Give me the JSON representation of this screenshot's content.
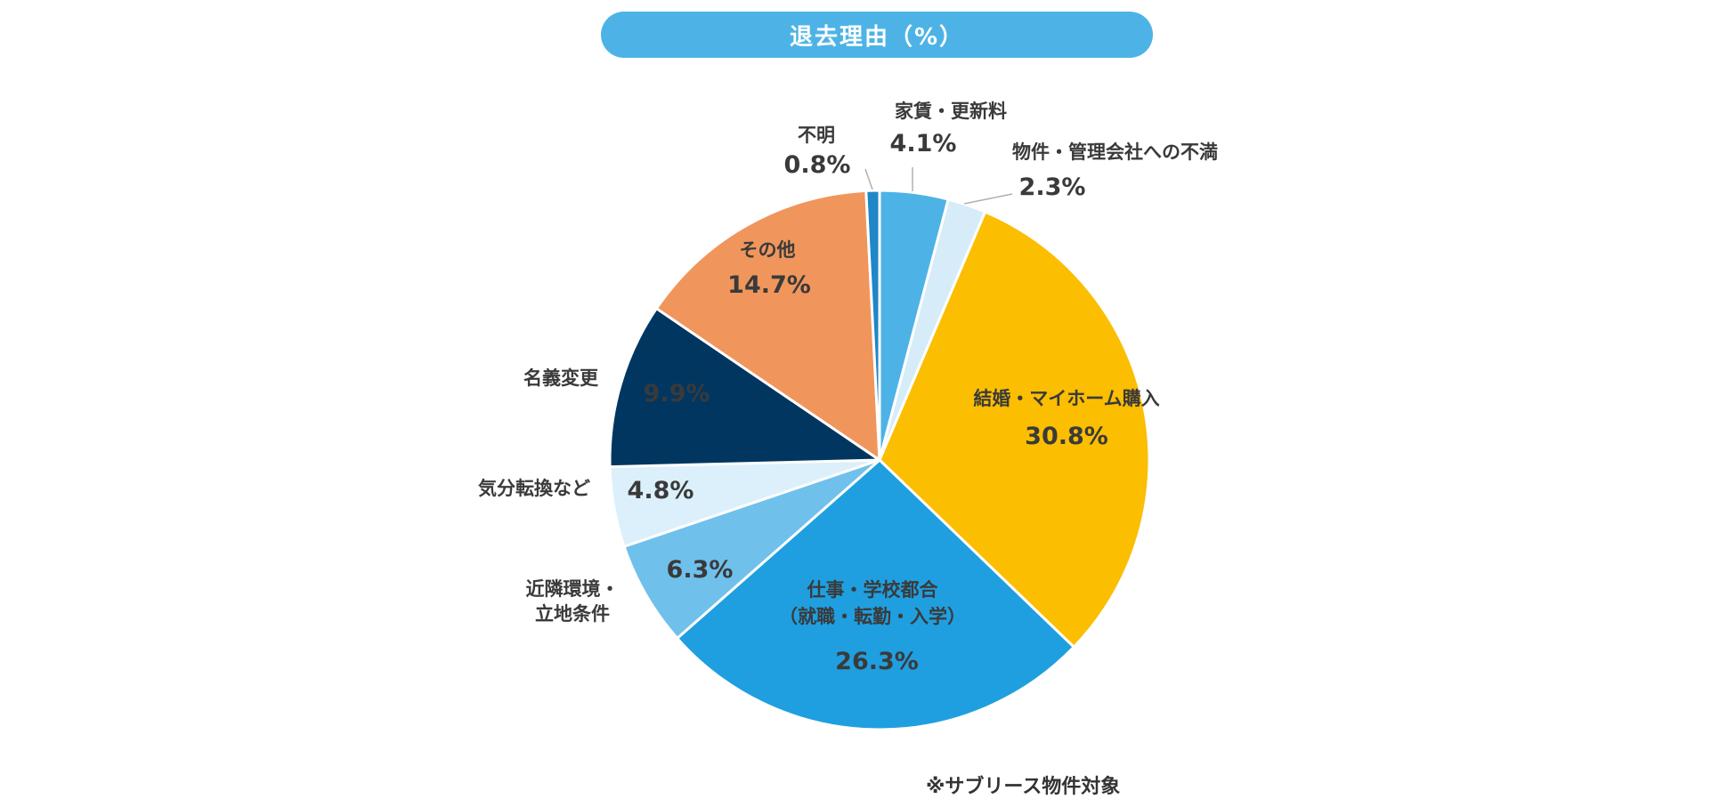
{
  "title": "退去理由（%）",
  "footnote": "※サブリース物件対象",
  "chart_data": {
    "type": "pie",
    "title": "退去理由（%）",
    "start_angle_deg": 0,
    "direction": "clockwise",
    "slices": [
      {
        "label": [
          "家賃・更新料"
        ],
        "value": 4.1,
        "value_text": "4.1%",
        "color": "#4db3e6"
      },
      {
        "label": [
          "物件・管理会社への不満"
        ],
        "value": 2.3,
        "value_text": "2.3%",
        "color": "#d6ecf9"
      },
      {
        "label": [
          "結婚・マイホーム購入"
        ],
        "value": 30.8,
        "value_text": "30.8%",
        "color": "#fbbe00"
      },
      {
        "label": [
          "仕事・学校都合",
          "（就職・転勤・入学）"
        ],
        "value": 26.3,
        "value_text": "26.3%",
        "color": "#1f9fe0"
      },
      {
        "label": [
          "近隣環境・",
          "立地条件"
        ],
        "value": 6.3,
        "value_text": "6.3%",
        "color": "#70c0ec"
      },
      {
        "label": [
          "気分転換など"
        ],
        "value": 4.8,
        "value_text": "4.8%",
        "color": "#dcf0fb"
      },
      {
        "label": [
          "名義変更"
        ],
        "value": 9.9,
        "value_text": "9.9%",
        "color": "#003660"
      },
      {
        "label": [
          "その他"
        ],
        "value": 14.7,
        "value_text": "14.7%",
        "color": "#f0965c"
      },
      {
        "label": [
          "不明"
        ],
        "value": 0.8,
        "value_text": "0.8%",
        "color": "#1f86c8"
      }
    ]
  }
}
